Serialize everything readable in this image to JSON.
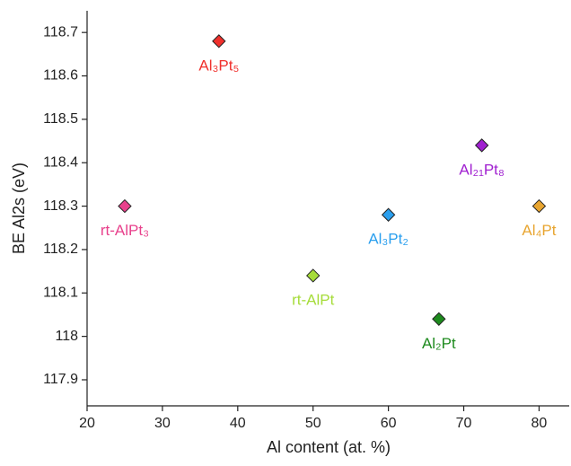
{
  "chart_data": {
    "type": "scatter",
    "x_label": "Al content (at. %)",
    "y_label": "BE Al2s (eV)",
    "xlim": [
      20,
      84
    ],
    "ylim": [
      117.84,
      118.75
    ],
    "xticks": [
      20,
      30,
      40,
      50,
      60,
      70,
      80
    ],
    "yticks": [
      117.9,
      118,
      118.1,
      118.2,
      118.3,
      118.4,
      118.5,
      118.6,
      118.7
    ],
    "series": [
      {
        "name": "Al₃Pt₅",
        "color": "#f0302c",
        "x": [
          37.5
        ],
        "values": [
          118.68
        ]
      },
      {
        "name": "rt-AlPt₃",
        "color": "#e8418c",
        "x": [
          25
        ],
        "values": [
          118.3
        ]
      },
      {
        "name": "rt-AlPt",
        "color": "#a6dc3a",
        "x": [
          50
        ],
        "values": [
          118.14
        ]
      },
      {
        "name": "Al₃Pt₂",
        "color": "#2a9fee",
        "x": [
          60
        ],
        "values": [
          118.28
        ]
      },
      {
        "name": "Al₂Pt",
        "color": "#1d8a1d",
        "x": [
          66.7
        ],
        "values": [
          118.04
        ]
      },
      {
        "name": "Al₂₁Pt₈",
        "color": "#a020d0",
        "x": [
          72.4
        ],
        "values": [
          118.44
        ]
      },
      {
        "name": "Al₄Pt",
        "color": "#e8a530",
        "x": [
          80
        ],
        "values": [
          118.3
        ]
      }
    ]
  }
}
